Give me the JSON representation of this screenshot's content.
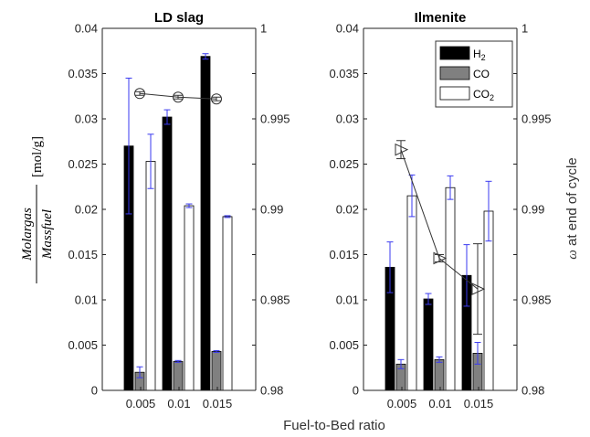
{
  "chart_data": {
    "type": "bar",
    "xlabel": "Fuel-to-Bed ratio",
    "ylabel_left": {
      "prefix": "",
      "numerator": "Molargas",
      "denominator": "Massfuel",
      "unit": "[mol/g]"
    },
    "ylabel_right": {
      "symbol": "ω",
      "text": " at end of cycle"
    },
    "left_ylim": [
      0,
      0.04
    ],
    "right_ylim": [
      0.98,
      1.0
    ],
    "left_ticks": [
      "0",
      "0.005",
      "0.01",
      "0.015",
      "0.02",
      "0.025",
      "0.03",
      "0.035",
      "0.04"
    ],
    "right_ticks": [
      "0.98",
      "0.985",
      "0.99",
      "0.995",
      "1"
    ],
    "categories": [
      "0.005",
      "0.01",
      "0.015"
    ],
    "legend": {
      "placement": "top-right of Ilmenite panel",
      "entries": [
        {
          "label": "H",
          "sub": "2",
          "color": "#000000"
        },
        {
          "label": "CO",
          "sub": "",
          "color": "#808080"
        },
        {
          "label": "CO",
          "sub": "2",
          "color": "#ffffff"
        }
      ]
    },
    "panels": [
      {
        "title": "LD slag",
        "series": [
          {
            "name": "H2",
            "color": "#000000",
            "values": [
              0.027,
              0.0302,
              0.0369
            ],
            "errors": [
              0.0075,
              0.0008,
              0.0003
            ]
          },
          {
            "name": "CO",
            "color": "#808080",
            "values": [
              0.002,
              0.0032,
              0.0043
            ],
            "errors": [
              0.0006,
              0.0001,
              0.0001
            ]
          },
          {
            "name": "CO2",
            "color": "#ffffff",
            "values": [
              0.0253,
              0.0204,
              0.0192
            ],
            "errors": [
              0.003,
              0.0002,
              0.0001
            ]
          }
        ],
        "omega": {
          "values": [
            0.9964,
            0.9962,
            0.9961
          ],
          "errors": [
            0.0001,
            0.0001,
            0.0001
          ],
          "marker": "circle"
        }
      },
      {
        "title": "Ilmenite",
        "series": [
          {
            "name": "H2",
            "color": "#000000",
            "values": [
              0.0136,
              0.0101,
              0.0127
            ],
            "errors": [
              0.0028,
              0.0006,
              0.0034
            ]
          },
          {
            "name": "CO",
            "color": "#808080",
            "values": [
              0.0029,
              0.0034,
              0.0041
            ],
            "errors": [
              0.0005,
              0.0003,
              0.0012
            ]
          },
          {
            "name": "CO2",
            "color": "#ffffff",
            "values": [
              0.0215,
              0.0224,
              0.0198
            ],
            "errors": [
              0.0023,
              0.0013,
              0.0033
            ]
          }
        ],
        "omega": {
          "values": [
            0.9933,
            0.9873,
            0.9856
          ],
          "errors": [
            0.0005,
            0.0002,
            0.0025
          ],
          "marker": "triangle-right"
        }
      }
    ]
  }
}
